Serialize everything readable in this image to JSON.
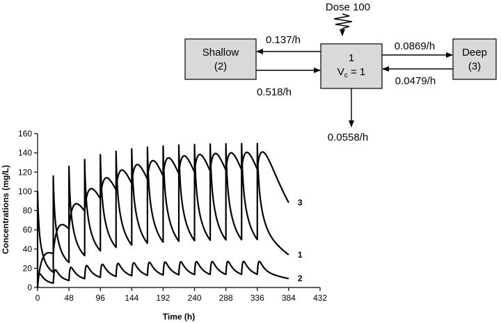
{
  "model": {
    "dose_label": "Dose 100",
    "compartments": {
      "central": {
        "line1": "1",
        "vc_prefix": "V",
        "vc_sub": "c",
        "vc_suffix": " = 1"
      },
      "shallow": {
        "line1": "Shallow",
        "line2": "(2)"
      },
      "deep": {
        "line1": "Deep",
        "line2": "(3)"
      }
    },
    "rates": {
      "central_to_shallow": "0.137/h",
      "shallow_to_central": "0.518/h",
      "central_to_deep": "0.0869/h",
      "deep_to_central": "0.0479/h",
      "elimination": "0.0558/h"
    },
    "colors": {
      "box_fill": "#d9d9d9",
      "stroke": "#000000"
    }
  },
  "chart_data": {
    "type": "line",
    "xlabel": "Time (h)",
    "ylabel": "Concentrations (mg/L)",
    "xlim": [
      0,
      432
    ],
    "ylim": [
      0,
      160
    ],
    "xticks": [
      0,
      48,
      96,
      144,
      192,
      240,
      288,
      336,
      384,
      432
    ],
    "yticks": [
      0,
      20,
      40,
      60,
      80,
      100,
      120,
      140,
      160
    ],
    "dosing": {
      "dose": 100,
      "interval_h": 24,
      "n_doses": 15,
      "vc": 1
    },
    "rate_constants": {
      "k12": 0.137,
      "k21": 0.518,
      "k13": 0.0869,
      "k31": 0.0479,
      "k10": 0.0558
    },
    "series": [
      {
        "name": "1",
        "compartment": 1
      },
      {
        "name": "2",
        "compartment": 2
      },
      {
        "name": "3",
        "compartment": 3
      }
    ],
    "grid": false
  }
}
